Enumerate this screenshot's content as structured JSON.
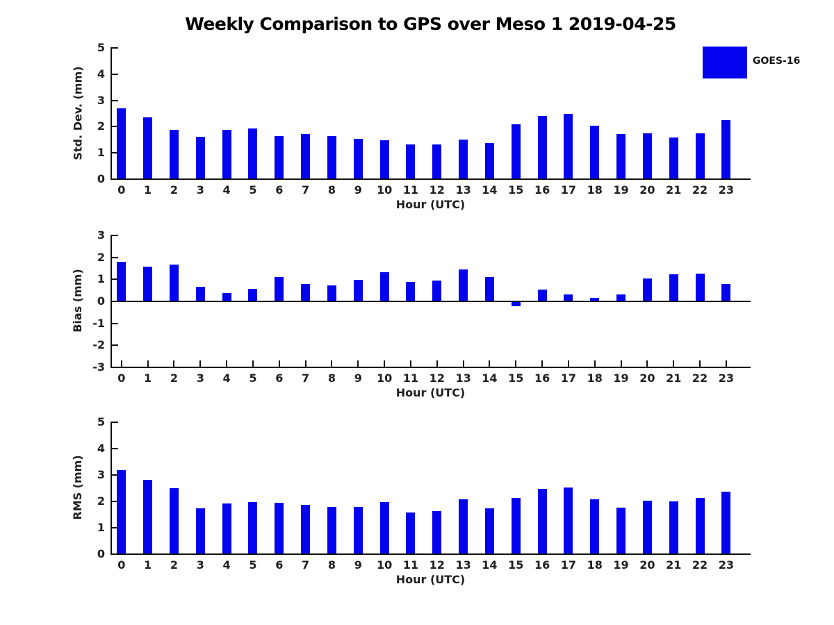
{
  "title": "Weekly Comparison to GPS over Meso 1 2019-04-25",
  "legend": {
    "label": "GOES-16",
    "color": "#0303f0"
  },
  "colors": {
    "bar": "#0303f0",
    "axis": "#111111",
    "text": "#1f1f1f"
  },
  "chart_data": [
    {
      "type": "bar",
      "id": "stddev",
      "ylabel": "Std. Dev. (mm)",
      "xlabel": "Hour (UTC)",
      "legend_entry": "GOES-16",
      "categories": [
        "0",
        "1",
        "2",
        "3",
        "4",
        "5",
        "6",
        "7",
        "8",
        "9",
        "10",
        "11",
        "12",
        "13",
        "14",
        "15",
        "16",
        "17",
        "18",
        "19",
        "20",
        "21",
        "22",
        "23"
      ],
      "values": [
        2.67,
        2.32,
        1.85,
        1.59,
        1.85,
        1.91,
        1.61,
        1.7,
        1.61,
        1.51,
        1.46,
        1.3,
        1.3,
        1.48,
        1.34,
        2.07,
        2.39,
        2.47,
        2.02,
        1.69,
        1.72,
        1.56,
        1.73,
        2.21
      ],
      "ylim": [
        0,
        5
      ],
      "yticks": [
        0,
        1,
        2,
        3,
        4,
        5
      ],
      "grid": false,
      "legend_position": "upper right (figure)"
    },
    {
      "type": "bar",
      "id": "bias",
      "ylabel": "Bias (mm)",
      "xlabel": "Hour (UTC)",
      "legend_entry": "GOES-16",
      "categories": [
        "0",
        "1",
        "2",
        "3",
        "4",
        "5",
        "6",
        "7",
        "8",
        "9",
        "10",
        "11",
        "12",
        "13",
        "14",
        "15",
        "16",
        "17",
        "18",
        "19",
        "20",
        "21",
        "22",
        "23"
      ],
      "values": [
        1.76,
        1.55,
        1.64,
        0.63,
        0.36,
        0.53,
        1.08,
        0.75,
        0.71,
        0.94,
        1.31,
        0.86,
        0.92,
        1.43,
        1.08,
        -0.18,
        0.49,
        0.3,
        0.12,
        0.3,
        1.02,
        1.2,
        1.23,
        0.77
      ],
      "ylim": [
        -3,
        3
      ],
      "yticks": [
        3,
        2,
        1,
        0,
        -1,
        -2,
        -3
      ],
      "grid": false,
      "zero_line": true
    },
    {
      "type": "bar",
      "id": "rms",
      "ylabel": "RMS (mm)",
      "xlabel": "Hour (UTC)",
      "legend_entry": "GOES-16",
      "categories": [
        "0",
        "1",
        "2",
        "3",
        "4",
        "5",
        "6",
        "7",
        "8",
        "9",
        "10",
        "11",
        "12",
        "13",
        "14",
        "15",
        "16",
        "17",
        "18",
        "19",
        "20",
        "21",
        "22",
        "23"
      ],
      "values": [
        3.17,
        2.78,
        2.47,
        1.72,
        1.9,
        1.95,
        1.93,
        1.85,
        1.77,
        1.77,
        1.95,
        1.56,
        1.61,
        2.06,
        1.72,
        2.1,
        2.45,
        2.5,
        2.06,
        1.74,
        2.0,
        1.98,
        2.1,
        2.34
      ],
      "ylim": [
        0,
        5
      ],
      "yticks": [
        0,
        1,
        2,
        3,
        4,
        5
      ],
      "grid": false
    }
  ]
}
